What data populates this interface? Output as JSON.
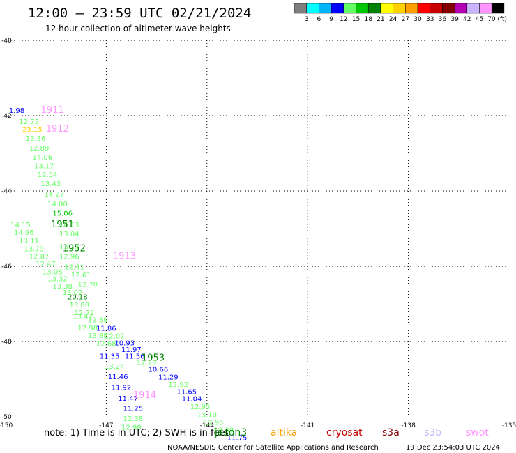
{
  "header": {
    "title": "12:00 – 23:59 UTC 02/21/2024",
    "subtitle": "12 hour collection of altimeter wave heights"
  },
  "colorbar": {
    "colors": [
      "#7f7f7f",
      "#00ffff",
      "#00b4ff",
      "#0000ff",
      "#64ff64",
      "#00c800",
      "#008200",
      "#ffff00",
      "#ffd200",
      "#ffa000",
      "#ff0000",
      "#c80000",
      "#820000",
      "#b400b4",
      "#c8b4ff",
      "#ff96ff",
      "#000000"
    ],
    "labels": [
      "3",
      "6",
      "9",
      "12",
      "15",
      "18",
      "21",
      "24",
      "27",
      "30",
      "33",
      "36",
      "39",
      "42",
      "45",
      "70 (ft)"
    ]
  },
  "chart_data": {
    "type": "scatter",
    "title": "12 hour collection of altimeter wave heights",
    "xlim": [
      -150,
      -135
    ],
    "ylim": [
      -50,
      -40
    ],
    "x_ticks": [
      "-150",
      "-147",
      "-144",
      "-141",
      "-138",
      "-135"
    ],
    "y_ticks": [
      "-40",
      "-42",
      "-44",
      "-46",
      "-48",
      "-50"
    ],
    "x_tick_values": [
      -150,
      -147,
      -144,
      -141,
      -138,
      -135
    ],
    "y_tick_values": [
      -40,
      -42,
      -44,
      -46,
      -48,
      -50
    ],
    "grid": true,
    "points": [
      {
        "lon": -149.9,
        "lat": -41.93,
        "value": "1.98",
        "color": "#0000ff"
      },
      {
        "lon": -149.6,
        "lat": -42.22,
        "value": "12.73",
        "color": "#64ff64"
      },
      {
        "lon": -149.5,
        "lat": -42.43,
        "value": "23.15",
        "color": "#ffd200"
      },
      {
        "lon": -149.4,
        "lat": -42.67,
        "value": "13.36",
        "color": "#64ff64"
      },
      {
        "lon": -149.3,
        "lat": -42.93,
        "value": "12.89",
        "color": "#64ff64"
      },
      {
        "lon": -149.2,
        "lat": -43.17,
        "value": "14.06",
        "color": "#64ff64"
      },
      {
        "lon": -149.15,
        "lat": -43.4,
        "value": "13.17",
        "color": "#64ff64"
      },
      {
        "lon": -149.05,
        "lat": -43.63,
        "value": "12.54",
        "color": "#64ff64"
      },
      {
        "lon": -148.95,
        "lat": -43.87,
        "value": "13.43",
        "color": "#64ff64"
      },
      {
        "lon": -148.85,
        "lat": -44.15,
        "value": "14.27",
        "color": "#64ff64"
      },
      {
        "lon": -148.75,
        "lat": -44.41,
        "value": "14.00",
        "color": "#64ff64"
      },
      {
        "lon": -148.6,
        "lat": -44.66,
        "value": "15.06",
        "color": "#00c800"
      },
      {
        "lon": -149.85,
        "lat": -44.96,
        "value": "14.15",
        "color": "#64ff64"
      },
      {
        "lon": -148.4,
        "lat": -44.96,
        "value": "14.13",
        "color": "#64ff64"
      },
      {
        "lon": -149.75,
        "lat": -45.17,
        "value": "14.96",
        "color": "#64ff64"
      },
      {
        "lon": -148.4,
        "lat": -45.2,
        "value": "13.04",
        "color": "#64ff64"
      },
      {
        "lon": -149.6,
        "lat": -45.38,
        "value": "13.11",
        "color": "#64ff64"
      },
      {
        "lon": -149.45,
        "lat": -45.6,
        "value": "13.79",
        "color": "#64ff64"
      },
      {
        "lon": -148.4,
        "lat": -45.55,
        "value": "13.13",
        "color": "#64ff64"
      },
      {
        "lon": -149.3,
        "lat": -45.81,
        "value": "12.87",
        "color": "#64ff64"
      },
      {
        "lon": -148.4,
        "lat": -45.81,
        "value": "12.96",
        "color": "#64ff64"
      },
      {
        "lon": -149.1,
        "lat": -46.0,
        "value": "12.47",
        "color": "#64ff64"
      },
      {
        "lon": -148.25,
        "lat": -46.08,
        "value": "12.41",
        "color": "#64ff64"
      },
      {
        "lon": -148.9,
        "lat": -46.21,
        "value": "13.08",
        "color": "#64ff64"
      },
      {
        "lon": -148.05,
        "lat": -46.3,
        "value": "12.61",
        "color": "#64ff64"
      },
      {
        "lon": -148.75,
        "lat": -46.4,
        "value": "13.32",
        "color": "#64ff64"
      },
      {
        "lon": -147.85,
        "lat": -46.55,
        "value": "12.70",
        "color": "#64ff64"
      },
      {
        "lon": -148.6,
        "lat": -46.59,
        "value": "13.38",
        "color": "#64ff64"
      },
      {
        "lon": -148.3,
        "lat": -46.76,
        "value": "13.02",
        "color": "#64ff64"
      },
      {
        "lon": -148.15,
        "lat": -46.88,
        "value": "20.18",
        "color": "#008200"
      },
      {
        "lon": -148.1,
        "lat": -47.09,
        "value": "13.88",
        "color": "#64ff64"
      },
      {
        "lon": -147.95,
        "lat": -47.3,
        "value": "12.72",
        "color": "#64ff64"
      },
      {
        "lon": -148.0,
        "lat": -47.4,
        "value": "13.42",
        "color": "#64ff64"
      },
      {
        "lon": -147.55,
        "lat": -47.49,
        "value": "12.59",
        "color": "#64ff64"
      },
      {
        "lon": -147.85,
        "lat": -47.7,
        "value": "12.98",
        "color": "#64ff64"
      },
      {
        "lon": -147.3,
        "lat": -47.71,
        "value": "11.86",
        "color": "#0000ff"
      },
      {
        "lon": -147.55,
        "lat": -47.91,
        "value": "13.88",
        "color": "#64ff64"
      },
      {
        "lon": -147.05,
        "lat": -47.92,
        "value": "12.02",
        "color": "#64ff64"
      },
      {
        "lon": -147.3,
        "lat": -48.12,
        "value": "12.68",
        "color": "#64ff64"
      },
      {
        "lon": -146.75,
        "lat": -48.1,
        "value": "10.93",
        "color": "#0000ff"
      },
      {
        "lon": -146.55,
        "lat": -48.28,
        "value": "11.97",
        "color": "#0000ff"
      },
      {
        "lon": -147.2,
        "lat": -48.45,
        "value": "11.35",
        "color": "#0000ff"
      },
      {
        "lon": -146.45,
        "lat": -48.45,
        "value": "11.56",
        "color": "#0000ff"
      },
      {
        "lon": -146.1,
        "lat": -48.62,
        "value": "12.20",
        "color": "#64ff64"
      },
      {
        "lon": -147.05,
        "lat": -48.72,
        "value": "13.24",
        "color": "#64ff64"
      },
      {
        "lon": -145.75,
        "lat": -48.81,
        "value": "10.66",
        "color": "#0000ff"
      },
      {
        "lon": -146.95,
        "lat": -49.0,
        "value": "11.46",
        "color": "#0000ff"
      },
      {
        "lon": -145.45,
        "lat": -49.01,
        "value": "11.29",
        "color": "#0000ff"
      },
      {
        "lon": -145.15,
        "lat": -49.2,
        "value": "12.92",
        "color": "#64ff64"
      },
      {
        "lon": -146.85,
        "lat": -49.29,
        "value": "11.92",
        "color": "#0000ff"
      },
      {
        "lon": -144.9,
        "lat": -49.4,
        "value": "11.65",
        "color": "#0000ff"
      },
      {
        "lon": -146.65,
        "lat": -49.57,
        "value": "11.47",
        "color": "#0000ff"
      },
      {
        "lon": -144.75,
        "lat": -49.58,
        "value": "11.04",
        "color": "#0000ff"
      },
      {
        "lon": -144.5,
        "lat": -49.8,
        "value": "12.95",
        "color": "#64ff64"
      },
      {
        "lon": -146.5,
        "lat": -49.84,
        "value": "11.25",
        "color": "#0000ff"
      },
      {
        "lon": -144.3,
        "lat": -50.01,
        "value": "13.10",
        "color": "#64ff64"
      },
      {
        "lon": -146.5,
        "lat": -50.11,
        "value": "12.38",
        "color": "#64ff64"
      },
      {
        "lon": -144.1,
        "lat": -50.21,
        "value": "12.95",
        "color": "#64ff64"
      },
      {
        "lon": -146.55,
        "lat": -50.34,
        "value": "12.98",
        "color": "#64ff64"
      },
      {
        "lon": -143.8,
        "lat": -50.42,
        "value": "12.39",
        "color": "#64ff64"
      },
      {
        "lon": -143.4,
        "lat": -50.62,
        "value": "11.75",
        "color": "#0000ff"
      }
    ],
    "pass_labels": [
      {
        "lon": -148.95,
        "lat": -41.93,
        "text": "1911",
        "color": "#ff96ff"
      },
      {
        "lon": -148.8,
        "lat": -42.43,
        "text": "1912",
        "color": "#ff96ff"
      },
      {
        "lon": -148.65,
        "lat": -44.96,
        "text": "1951",
        "color": "#008200"
      },
      {
        "lon": -148.3,
        "lat": -45.6,
        "text": "1952",
        "color": "#008200"
      },
      {
        "lon": -146.8,
        "lat": -45.81,
        "text": "1913",
        "color": "#ff96ff"
      },
      {
        "lon": -145.95,
        "lat": -48.51,
        "text": "1953",
        "color": "#008200"
      },
      {
        "lon": -146.2,
        "lat": -49.5,
        "text": "1914",
        "color": "#ff96ff"
      }
    ]
  },
  "legend": {
    "note": "note:  1) Time is in UTC;  2) SWH is in feet",
    "satellites": [
      {
        "name": "jason3",
        "color": "#008200"
      },
      {
        "name": "altika",
        "color": "#ffa000"
      },
      {
        "name": "cryosat",
        "color": "#c80000"
      },
      {
        "name": "s3a",
        "color": "#820000"
      },
      {
        "name": "s3b",
        "color": "#c8b4ff"
      },
      {
        "name": "swot",
        "color": "#ff96ff"
      }
    ]
  },
  "footer": {
    "credit": "NOAA/NESDIS Center for Satellite Applications and Research",
    "timestamp": "13 Dec 23:54:03 UTC 2024"
  }
}
